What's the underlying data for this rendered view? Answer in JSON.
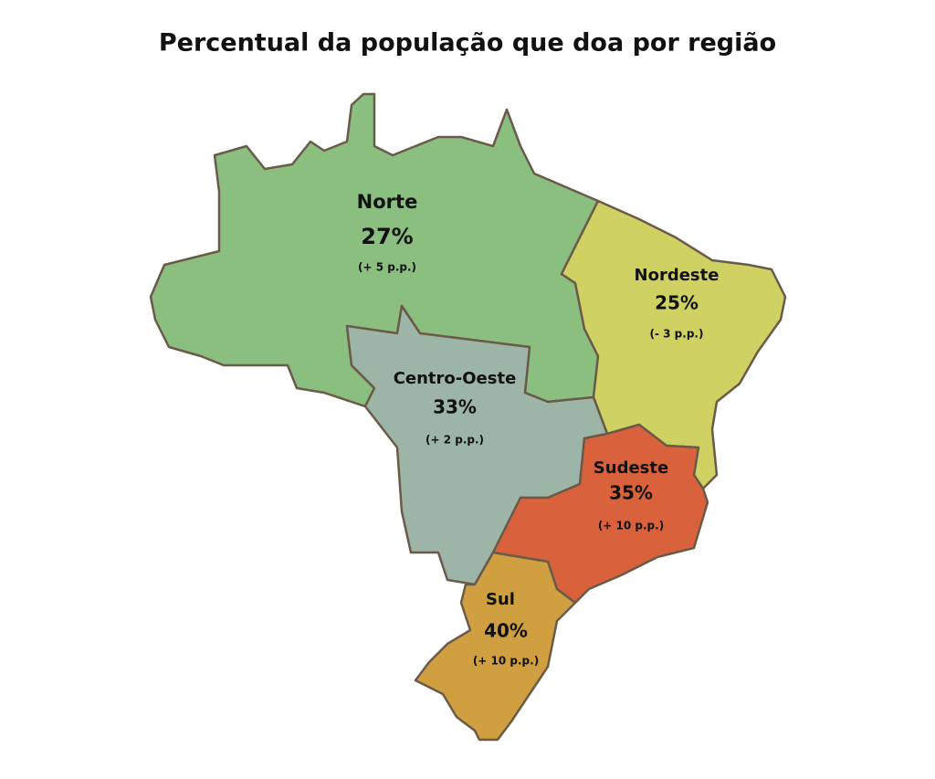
{
  "title": "Percentual da população que doa por região",
  "regions": [
    {
      "name": "Norte",
      "value": "27%",
      "change": "(+ 5 p.p.)",
      "color": "#8abf7f"
    },
    {
      "name": "Nordeste",
      "value": "25%",
      "change": "(- 3 p.p.)",
      "color": "#cfd162"
    },
    {
      "name": "Centro-Oeste",
      "value": "33%",
      "change": "(+ 2 p.p.)",
      "color": "#9cb5a6"
    },
    {
      "name": "Sudeste",
      "value": "35%",
      "change": "(+ 10 p.p.)",
      "color": "#d9623c"
    },
    {
      "name": "Sul",
      "value": "40%",
      "change": "(+ 10 p.p.)",
      "color": "#d0a040"
    }
  ]
}
